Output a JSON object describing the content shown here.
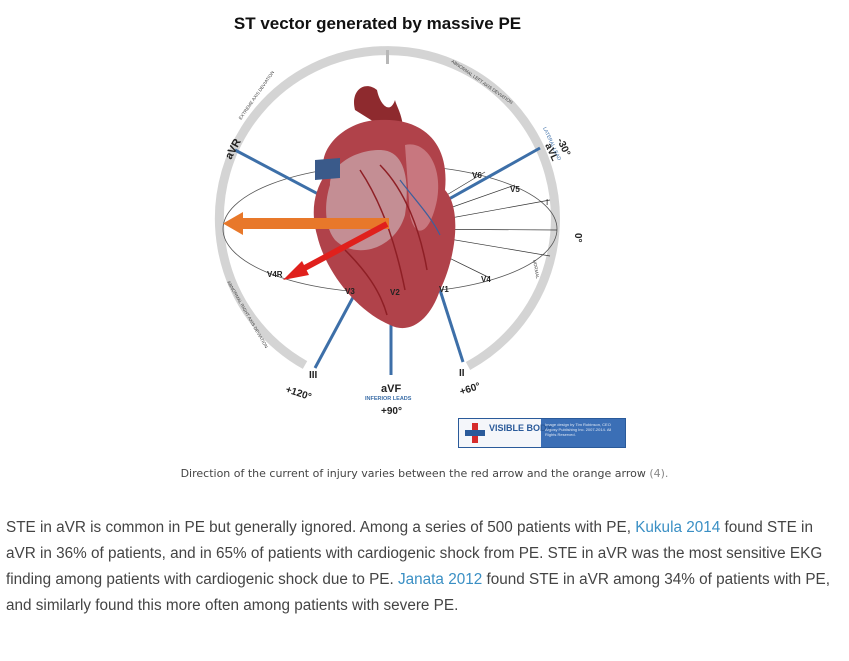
{
  "figure": {
    "title": "ST vector generated by massive PE",
    "labels": {
      "avr": "aVR",
      "avl": "aVL",
      "minus30": "-30°",
      "lateral_lead": "LATERAL LEAD",
      "zero": "0°",
      "iii": "III",
      "plus120": "+120°",
      "avf": "aVF",
      "inferior_leads": "INFERIOR LEADS",
      "plus90": "+90°",
      "ii": "II",
      "plus60": "+60°",
      "i": "I",
      "v1": "V1",
      "v2": "V2",
      "v3": "V3",
      "v4": "V4",
      "v4r": "V4R",
      "v5": "V5",
      "v6": "V6",
      "extreme_axis": "EXTREME AXIS DEVIATION",
      "abnormal_left": "ABNORMAL LEFT AXIS DEVIATION",
      "abnormal_right": "ABNORMAL RIGHT AXIS DEVIATION",
      "normal": "NORMAL"
    },
    "logo": {
      "name": "VISIBLE BODY",
      "small_text": "Image design by Tim Robinson, CEO Argosy Publishing Inc. 2007-2014. All Rights Reserved."
    },
    "colors": {
      "ring": "#d4d4d4",
      "lead_line": "#3d6fa8",
      "orange_arrow": "#e8782a",
      "red_arrow": "#e0201c",
      "heart": "#b0424a"
    }
  },
  "caption": {
    "text": "Direction of the current of injury varies between the red arrow and the orange arrow",
    "ref": "(4)."
  },
  "paragraph": {
    "part1": "STE in aVR is common in PE but generally ignored.   Among a series of 500 patients with PE, ",
    "link1": "Kukula 2014",
    "part2": " found STE in aVR in 36% of patients, and in 65% of patients with cardiogenic shock from PE.   STE in aVR was the most sensitive EKG finding among patients with cardiogenic shock due to PE.   ",
    "link2": "Janata 2012",
    "part3": " found STE in aVR among 34% of patients with PE, and similarly found this more often among patients with severe PE."
  }
}
